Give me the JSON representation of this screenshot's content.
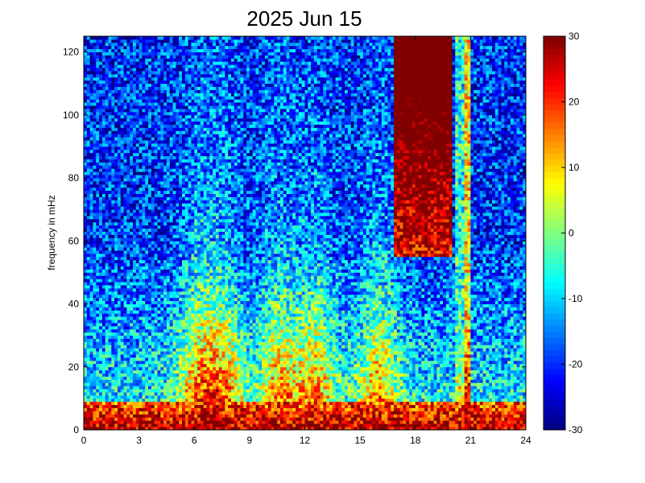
{
  "chart_data": {
    "type": "heatmap",
    "title": "2025 Jun 15",
    "xlabel": "",
    "ylabel": "frequency in mHz",
    "xlim": [
      0,
      24
    ],
    "ylim": [
      0,
      125
    ],
    "x_ticks": [
      0,
      3,
      6,
      9,
      12,
      15,
      18,
      21,
      24
    ],
    "y_ticks": [
      0,
      20,
      40,
      60,
      80,
      100,
      120
    ],
    "colorbar": {
      "min": -30,
      "max": 30,
      "ticks": [
        30,
        20,
        10,
        0,
        -10,
        -20,
        -30
      ],
      "colormap": "jet"
    },
    "grid": false,
    "cells_x": 144,
    "cells_y": 125,
    "features": {
      "background_high_freq_level": -20,
      "low_freq_band_level": 28,
      "daytime_activity_peaks_hours": [
        6.2,
        7.6,
        10.6,
        12.6,
        16.0
      ],
      "saturated_block_hours": [
        16.9,
        20.0
      ],
      "saturated_block_min_freq": 55,
      "vertical_stripe_hours": [
        20.2,
        21.0
      ]
    }
  }
}
